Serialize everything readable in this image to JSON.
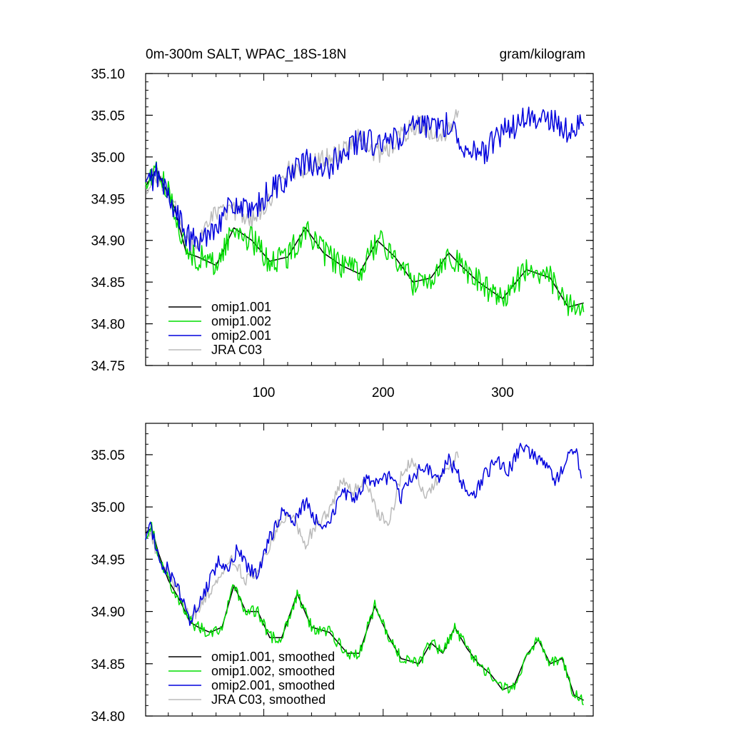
{
  "chart_data": [
    {
      "type": "line",
      "title_left": "0m-300m SALT, WPAC_18S-18N",
      "title_right": "gram/kilogram",
      "xlim": [
        1,
        376
      ],
      "ylim": [
        34.75,
        35.1
      ],
      "x_ticks": [
        100,
        200,
        300
      ],
      "x_tick_labels": [
        "100",
        "200",
        "300"
      ],
      "y_ticks": [
        34.75,
        34.8,
        34.85,
        34.9,
        34.95,
        35.0,
        35.05,
        35.1
      ],
      "y_tick_labels": [
        "34.75",
        "34.80",
        "34.85",
        "34.90",
        "34.95",
        "35.00",
        "35.05",
        "35.10"
      ],
      "legend_position": "bottom-left",
      "series": [
        {
          "name": "omip1.001",
          "color": "#000000",
          "hidden_under": "omip1.002",
          "noise": 0.0,
          "x": [
            1,
            10,
            25,
            35,
            45,
            60,
            75,
            90,
            105,
            120,
            135,
            150,
            165,
            180,
            195,
            210,
            225,
            240,
            255,
            265,
            280,
            300,
            320,
            340,
            355,
            368
          ],
          "values": [
            34.965,
            34.985,
            34.94,
            34.885,
            34.88,
            34.87,
            34.915,
            34.9,
            34.875,
            34.88,
            34.915,
            34.885,
            34.87,
            34.86,
            34.9,
            34.88,
            34.85,
            34.855,
            34.885,
            34.87,
            34.85,
            34.83,
            34.865,
            34.855,
            34.82,
            34.825
          ]
        },
        {
          "name": "omip1.002",
          "color": "#00dd00",
          "noise": 0.016,
          "x": [
            1,
            10,
            25,
            35,
            45,
            60,
            75,
            90,
            105,
            120,
            135,
            150,
            165,
            180,
            195,
            210,
            225,
            240,
            255,
            265,
            280,
            300,
            320,
            340,
            355,
            368
          ],
          "values": [
            34.965,
            34.985,
            34.94,
            34.885,
            34.88,
            34.87,
            34.915,
            34.9,
            34.875,
            34.88,
            34.915,
            34.885,
            34.87,
            34.86,
            34.9,
            34.88,
            34.85,
            34.855,
            34.885,
            34.87,
            34.85,
            34.83,
            34.865,
            34.855,
            34.82,
            34.825
          ]
        },
        {
          "name": "omip2.001",
          "color": "#0000dd",
          "noise": 0.016,
          "x": [
            1,
            10,
            25,
            35,
            45,
            60,
            75,
            90,
            105,
            120,
            135,
            150,
            165,
            180,
            195,
            210,
            225,
            240,
            255,
            270,
            285,
            300,
            320,
            340,
            355,
            368
          ],
          "values": [
            34.965,
            34.98,
            34.94,
            34.905,
            34.895,
            34.92,
            34.945,
            34.93,
            34.96,
            34.975,
            34.995,
            34.98,
            35.005,
            35.02,
            35.015,
            35.02,
            35.035,
            35.035,
            35.04,
            35.01,
            35.005,
            35.03,
            35.045,
            35.045,
            35.03,
            35.04
          ]
        },
        {
          "name": "JRA C03",
          "color": "#bbbbbb",
          "noise": 0.012,
          "x": [
            1,
            10,
            25,
            35,
            45,
            60,
            75,
            90,
            105,
            120,
            135,
            150,
            165,
            180,
            190,
            200,
            215,
            230,
            245,
            255,
            263
          ],
          "values": [
            34.965,
            34.98,
            34.94,
            34.895,
            34.895,
            34.935,
            34.935,
            34.925,
            34.95,
            34.985,
            34.985,
            35.0,
            35.005,
            35.03,
            35.005,
            35.005,
            35.025,
            35.04,
            35.02,
            35.035,
            35.05
          ]
        }
      ]
    },
    {
      "type": "line",
      "xlim": [
        1,
        376
      ],
      "ylim": [
        34.8,
        35.08
      ],
      "x_ticks": [
        100,
        200,
        300
      ],
      "y_ticks": [
        34.8,
        34.85,
        34.9,
        34.95,
        35.0,
        35.05
      ],
      "y_tick_labels": [
        "34.80",
        "34.85",
        "34.90",
        "34.95",
        "35.00",
        "35.05"
      ],
      "legend_position": "bottom-left",
      "series": [
        {
          "name": "omip1.001, smoothed",
          "color": "#000000",
          "hidden_under": "omip1.002, smoothed",
          "noise": 0.0,
          "x": [
            1,
            6,
            12,
            20,
            30,
            38,
            45,
            55,
            65,
            75,
            85,
            95,
            105,
            115,
            128,
            140,
            155,
            170,
            180,
            193,
            205,
            215,
            230,
            240,
            250,
            260,
            270,
            280,
            290,
            300,
            310,
            320,
            330,
            340,
            350,
            360,
            368
          ],
          "values": [
            34.975,
            34.98,
            34.955,
            34.93,
            34.91,
            34.89,
            34.885,
            34.88,
            34.885,
            34.925,
            34.9,
            34.9,
            34.875,
            34.875,
            34.917,
            34.885,
            34.88,
            34.86,
            34.86,
            34.905,
            34.875,
            34.855,
            34.85,
            34.87,
            34.86,
            34.885,
            34.865,
            34.85,
            34.84,
            34.825,
            34.83,
            34.858,
            34.873,
            34.85,
            34.855,
            34.82,
            34.815
          ]
        },
        {
          "name": "omip1.002, smoothed",
          "color": "#00dd00",
          "noise": 0.006,
          "x": [
            1,
            6,
            12,
            20,
            30,
            38,
            45,
            55,
            65,
            75,
            85,
            95,
            105,
            115,
            128,
            140,
            155,
            170,
            180,
            193,
            205,
            215,
            230,
            240,
            250,
            260,
            270,
            280,
            290,
            300,
            310,
            320,
            330,
            340,
            350,
            360,
            368
          ],
          "values": [
            34.975,
            34.98,
            34.955,
            34.93,
            34.91,
            34.89,
            34.885,
            34.88,
            34.885,
            34.925,
            34.9,
            34.9,
            34.875,
            34.875,
            34.917,
            34.885,
            34.88,
            34.86,
            34.86,
            34.905,
            34.875,
            34.855,
            34.85,
            34.87,
            34.86,
            34.885,
            34.865,
            34.85,
            34.84,
            34.825,
            34.83,
            34.858,
            34.873,
            34.85,
            34.855,
            34.82,
            34.815
          ]
        },
        {
          "name": "omip2.001, smoothed",
          "color": "#0000dd",
          "noise": 0.007,
          "x": [
            1,
            6,
            12,
            20,
            30,
            38,
            45,
            55,
            62,
            70,
            78,
            88,
            95,
            105,
            115,
            125,
            135,
            145,
            155,
            165,
            175,
            185,
            195,
            205,
            215,
            225,
            235,
            245,
            255,
            265,
            275,
            285,
            295,
            305,
            315,
            325,
            335,
            345,
            355,
            360,
            366
          ],
          "values": [
            34.975,
            34.98,
            34.95,
            34.94,
            34.915,
            34.893,
            34.905,
            34.93,
            34.95,
            34.935,
            34.96,
            34.94,
            34.935,
            34.97,
            34.995,
            34.985,
            35.005,
            34.985,
            34.985,
            35.015,
            35.005,
            35.025,
            35.02,
            35.03,
            35.01,
            35.03,
            35.04,
            35.025,
            35.045,
            35.025,
            35.01,
            35.03,
            35.045,
            35.035,
            35.055,
            35.05,
            35.04,
            35.025,
            35.05,
            35.058,
            35.032
          ]
        },
        {
          "name": "JRA C03, smoothed",
          "color": "#bbbbbb",
          "noise": 0.006,
          "x": [
            1,
            6,
            12,
            20,
            30,
            38,
            45,
            55,
            65,
            75,
            85,
            95,
            105,
            115,
            125,
            135,
            145,
            155,
            165,
            175,
            185,
            195,
            205,
            215,
            225,
            235,
            245,
            255,
            263
          ],
          "values": [
            34.975,
            34.975,
            34.948,
            34.935,
            34.918,
            34.895,
            34.9,
            34.92,
            34.94,
            34.95,
            34.93,
            34.935,
            34.965,
            34.99,
            34.99,
            34.965,
            34.985,
            34.995,
            35.025,
            35.015,
            35.025,
            34.995,
            34.985,
            35.03,
            35.045,
            35.01,
            35.025,
            35.035,
            35.05
          ]
        }
      ]
    }
  ]
}
